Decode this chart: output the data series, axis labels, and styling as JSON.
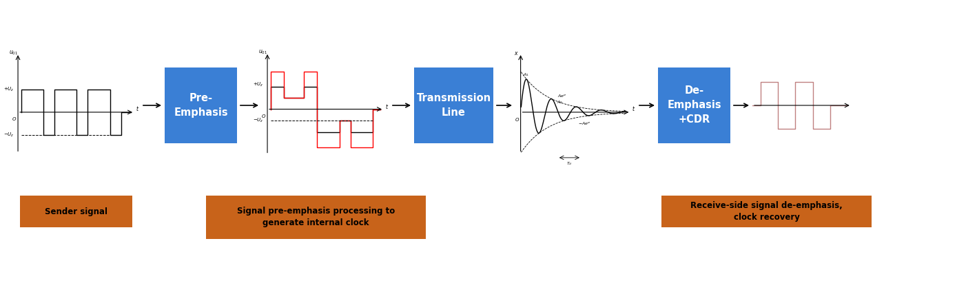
{
  "bg_color": "#ffffff",
  "blue_box_color": "#3a7fd5",
  "orange_box_color": "#c8631a",
  "label_sender": "Sender signal",
  "label_pre": "Signal pre-emphasis processing to\ngenerate internal clock",
  "label_rx": "Receive-side signal de-emphasis,\nclock recovery",
  "box1_text": "Pre-\nEmphasis",
  "box2_text": "Transmission\nLine",
  "box3_text": "De-\nEmphasis\n+CDR",
  "fig_width": 14.18,
  "fig_height": 4.08,
  "fig_dpi": 100
}
